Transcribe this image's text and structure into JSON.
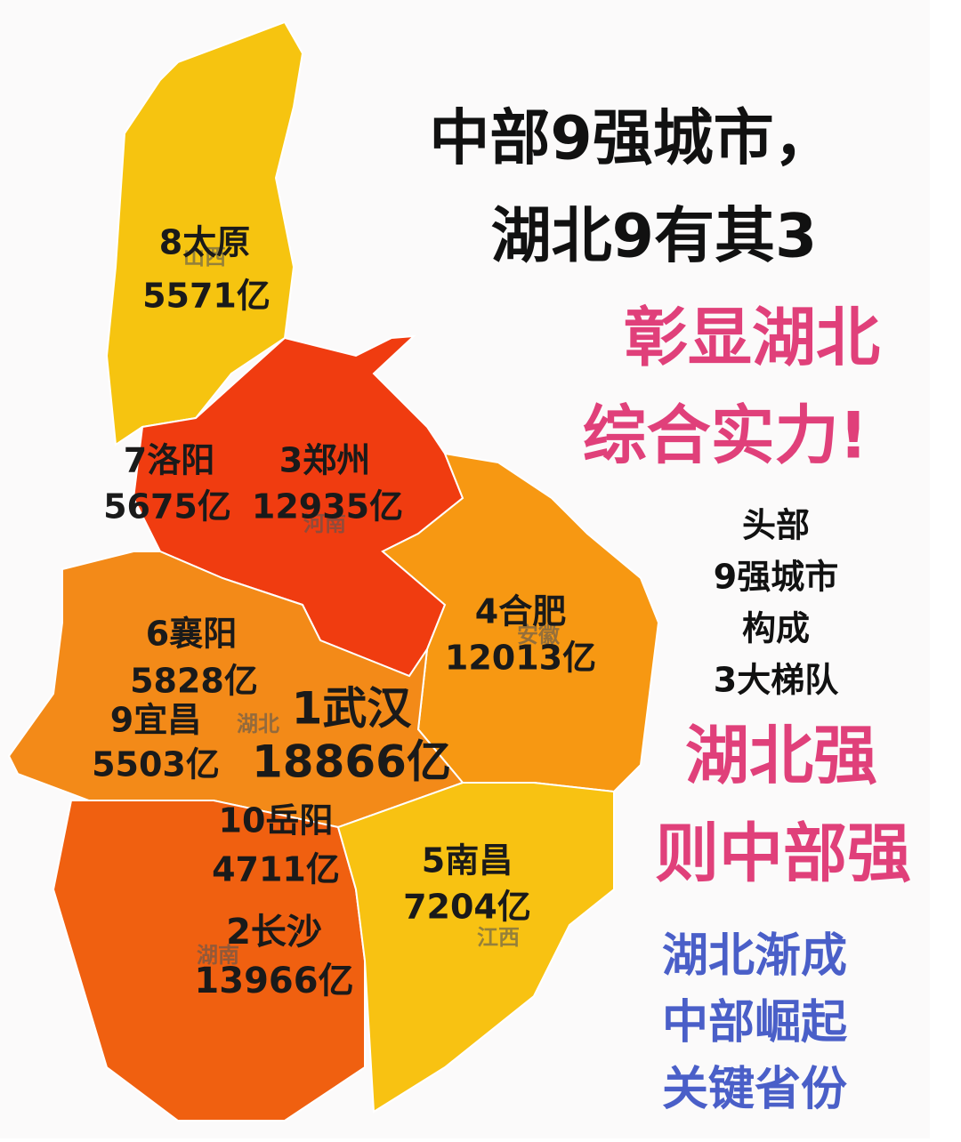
{
  "title": {
    "line1": "中部9强城市，",
    "line2": "湖北9有其3"
  },
  "slogan": {
    "line1": "彰显湖北",
    "line2": "综合实力!"
  },
  "note": {
    "lines": [
      "头部",
      "9强城市",
      "构成",
      "3大梯队"
    ]
  },
  "slogan2": {
    "line1": "湖北强",
    "line2": "则中部强"
  },
  "footer": {
    "lines": [
      "湖北渐成",
      "中部崛起",
      "关键省份"
    ]
  },
  "provinces": [
    "山西",
    "河南",
    "安徽",
    "湖北",
    "湖南",
    "江西"
  ],
  "cities": [
    {
      "name": "8太原",
      "gdp": "5571亿"
    },
    {
      "name": "7洛阳",
      "gdp": "5675亿"
    },
    {
      "name": "3郑州",
      "gdp": "12935亿"
    },
    {
      "name": "4合肥",
      "gdp": "12013亿"
    },
    {
      "name": "6襄阳",
      "gdp": "5828亿"
    },
    {
      "name": "9宜昌",
      "gdp": "5503亿"
    },
    {
      "name": "1武汉",
      "gdp": "18866亿"
    },
    {
      "name": "10岳阳",
      "gdp": "4711亿"
    },
    {
      "name": "5南昌",
      "gdp": "7204亿"
    },
    {
      "name": "2长沙",
      "gdp": "13966亿"
    }
  ]
}
